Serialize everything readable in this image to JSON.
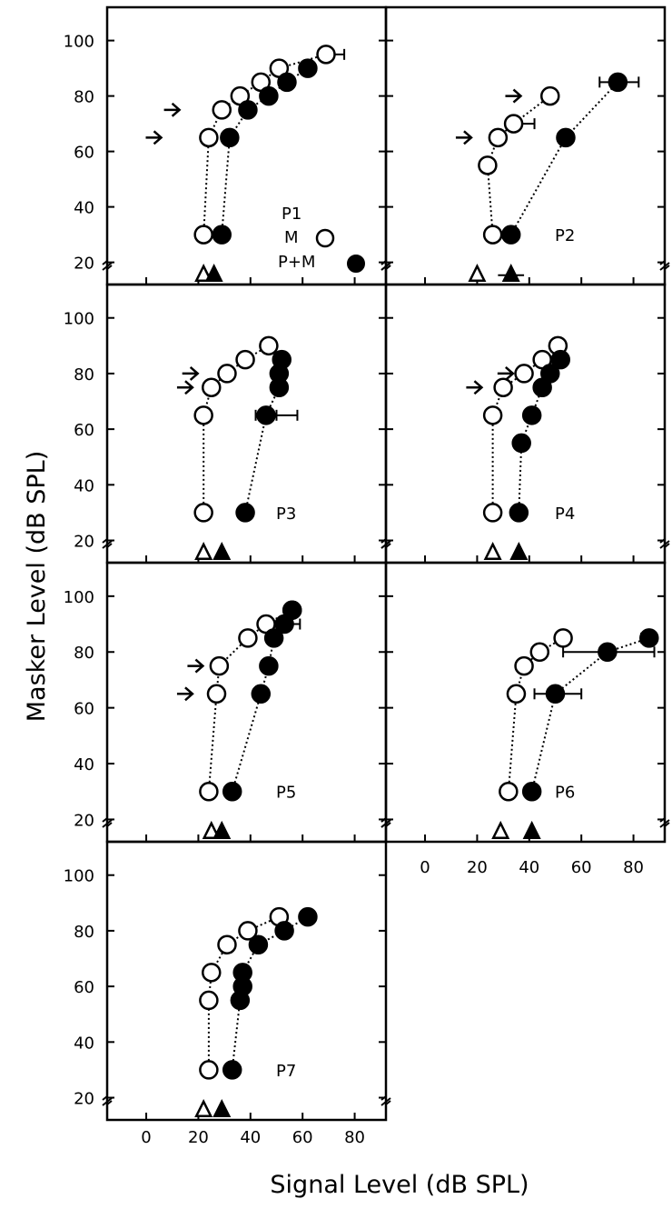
{
  "figure": {
    "xlabel": "Signal Level (dB SPL)",
    "ylabel": "Masker Level (dB SPL)",
    "legend": {
      "title": "P1",
      "m_label": "M",
      "pm_label": "P+M"
    }
  },
  "colors": {
    "ink": "#000000",
    "background": "#ffffff",
    "open_marker": "#ffffff",
    "filled_marker": "#000000"
  },
  "chart_data": [
    {
      "type": "scatter",
      "panel": "P1",
      "xlim": [
        -15,
        92
      ],
      "ylim": [
        12,
        112
      ],
      "yticks": [
        20,
        40,
        60,
        80,
        100
      ],
      "xticks": [],
      "grid": false,
      "series": [
        {
          "name": "M",
          "marker": "open-circle",
          "points": [
            [
              22,
              30
            ],
            [
              24,
              65
            ],
            [
              29,
              75
            ],
            [
              36,
              80
            ],
            [
              44,
              85
            ],
            [
              51,
              90
            ],
            [
              69,
              95
            ]
          ],
          "xerr": [
            [
              69,
              76
            ]
          ]
        },
        {
          "name": "P+M",
          "marker": "filled-circle",
          "points": [
            [
              29,
              30
            ],
            [
              32,
              65
            ],
            [
              39,
              75
            ],
            [
              47,
              80
            ],
            [
              54,
              85
            ],
            [
              62,
              90
            ]
          ]
        }
      ],
      "thresholds": [
        {
          "series": "M",
          "x": 22,
          "marker": "open-triangle"
        },
        {
          "series": "P+M",
          "x": 26,
          "marker": "filled-triangle"
        }
      ],
      "arrows": [
        {
          "x": 11,
          "y": 75
        },
        {
          "x": 4,
          "y": 65
        }
      ]
    },
    {
      "type": "scatter",
      "panel": "P2",
      "xlim": [
        -15,
        92
      ],
      "ylim": [
        12,
        112
      ],
      "yticks": [],
      "xticks": [],
      "grid": false,
      "series": [
        {
          "name": "M",
          "marker": "open-circle",
          "points": [
            [
              26,
              30
            ],
            [
              24,
              55
            ],
            [
              28,
              65
            ],
            [
              34,
              70
            ],
            [
              48,
              80
            ]
          ],
          "xerr": [
            [
              34,
              42
            ]
          ]
        },
        {
          "name": "P+M",
          "marker": "filled-circle",
          "points": [
            [
              33,
              30
            ],
            [
              54,
              65
            ],
            [
              74,
              85
            ]
          ],
          "xerr": [
            [
              67,
              82
            ]
          ]
        }
      ],
      "thresholds": [
        {
          "series": "M",
          "x": 20,
          "marker": "open-triangle",
          "xerr": []
        },
        {
          "series": "P+M",
          "x": 33,
          "marker": "filled-triangle",
          "xerr": [
            28,
            38
          ]
        }
      ],
      "arrows": [
        {
          "x": 35,
          "y": 80
        },
        {
          "x": 16,
          "y": 65
        }
      ]
    },
    {
      "type": "scatter",
      "panel": "P3",
      "xlim": [
        -15,
        92
      ],
      "ylim": [
        12,
        112
      ],
      "yticks": [
        20,
        40,
        60,
        80,
        100
      ],
      "xticks": [],
      "grid": false,
      "series": [
        {
          "name": "M",
          "marker": "open-circle",
          "points": [
            [
              22,
              30
            ],
            [
              22,
              65
            ],
            [
              25,
              75
            ],
            [
              31,
              80
            ],
            [
              38,
              85
            ],
            [
              47,
              90
            ]
          ]
        },
        {
          "name": "P+M",
          "marker": "filled-circle",
          "points": [
            [
              38,
              30
            ],
            [
              46,
              65
            ],
            [
              51,
              75
            ],
            [
              51,
              80
            ],
            [
              52,
              85
            ]
          ],
          "xerr": [
            [
              42,
              50
            ],
            [
              44,
              58
            ]
          ]
        }
      ],
      "thresholds": [
        {
          "series": "M",
          "x": 22,
          "marker": "open-triangle"
        },
        {
          "series": "P+M",
          "x": 29,
          "marker": "filled-triangle"
        }
      ],
      "arrows": [
        {
          "x": 16,
          "y": 75
        },
        {
          "x": 18,
          "y": 80
        }
      ]
    },
    {
      "type": "scatter",
      "panel": "P4",
      "xlim": [
        -15,
        92
      ],
      "ylim": [
        12,
        112
      ],
      "yticks": [],
      "xticks": [],
      "grid": false,
      "series": [
        {
          "name": "M",
          "marker": "open-circle",
          "points": [
            [
              26,
              30
            ],
            [
              26,
              65
            ],
            [
              30,
              75
            ],
            [
              38,
              80
            ],
            [
              45,
              85
            ],
            [
              51,
              90
            ]
          ]
        },
        {
          "name": "P+M",
          "marker": "filled-circle",
          "points": [
            [
              36,
              30
            ],
            [
              37,
              55
            ],
            [
              41,
              65
            ],
            [
              45,
              75
            ],
            [
              48,
              80
            ],
            [
              52,
              85
            ]
          ]
        }
      ],
      "thresholds": [
        {
          "series": "M",
          "x": 26,
          "marker": "open-triangle"
        },
        {
          "series": "P+M",
          "x": 36,
          "marker": "filled-triangle"
        }
      ],
      "arrows": [
        {
          "x": 20,
          "y": 75
        },
        {
          "x": 32,
          "y": 80
        }
      ]
    },
    {
      "type": "scatter",
      "panel": "P5",
      "xlim": [
        -15,
        92
      ],
      "ylim": [
        12,
        112
      ],
      "yticks": [
        20,
        40,
        60,
        80,
        100
      ],
      "xticks": [],
      "grid": false,
      "series": [
        {
          "name": "M",
          "marker": "open-circle",
          "points": [
            [
              24,
              30
            ],
            [
              27,
              65
            ],
            [
              28,
              75
            ],
            [
              39,
              85
            ],
            [
              46,
              90
            ],
            [
              56,
              95
            ]
          ]
        },
        {
          "name": "P+M",
          "marker": "filled-circle",
          "points": [
            [
              33,
              30
            ],
            [
              44,
              65
            ],
            [
              47,
              75
            ],
            [
              49,
              85
            ],
            [
              53,
              90
            ],
            [
              56,
              95
            ]
          ],
          "xerr": [
            [
              53,
              59
            ]
          ]
        }
      ],
      "thresholds": [
        {
          "series": "M",
          "x": 25,
          "marker": "open-triangle"
        },
        {
          "series": "P+M",
          "x": 29,
          "marker": "filled-triangle"
        }
      ],
      "arrows": [
        {
          "x": 20,
          "y": 75
        },
        {
          "x": 16,
          "y": 65
        }
      ]
    },
    {
      "type": "scatter",
      "panel": "P6",
      "xlim": [
        -15,
        92
      ],
      "ylim": [
        12,
        112
      ],
      "yticks": [],
      "xticks": [
        0,
        20,
        40,
        60,
        80
      ],
      "grid": false,
      "series": [
        {
          "name": "M",
          "marker": "open-circle",
          "points": [
            [
              32,
              30
            ],
            [
              35,
              65
            ],
            [
              38,
              75
            ],
            [
              44,
              80
            ],
            [
              53,
              85
            ]
          ]
        },
        {
          "name": "P+M",
          "marker": "filled-circle",
          "points": [
            [
              41,
              30
            ],
            [
              50,
              65
            ],
            [
              70,
              80
            ],
            [
              86,
              85
            ]
          ],
          "xerr": [
            [
              42,
              60
            ],
            [
              53,
              88
            ],
            [
              83,
              88
            ]
          ]
        }
      ],
      "thresholds": [
        {
          "series": "M",
          "x": 29,
          "marker": "open-triangle"
        },
        {
          "series": "P+M",
          "x": 41,
          "marker": "filled-triangle"
        }
      ]
    },
    {
      "type": "scatter",
      "panel": "P7",
      "xlim": [
        -15,
        92
      ],
      "ylim": [
        12,
        112
      ],
      "yticks": [
        20,
        40,
        60,
        80,
        100
      ],
      "xticks": [
        0,
        20,
        40,
        60,
        80
      ],
      "grid": false,
      "series": [
        {
          "name": "M",
          "marker": "open-circle",
          "points": [
            [
              24,
              30
            ],
            [
              24,
              55
            ],
            [
              25,
              65
            ],
            [
              31,
              75
            ],
            [
              39,
              80
            ],
            [
              51,
              85
            ]
          ]
        },
        {
          "name": "P+M",
          "marker": "filled-circle",
          "points": [
            [
              33,
              30
            ],
            [
              36,
              55
            ],
            [
              37,
              60
            ],
            [
              37,
              65
            ],
            [
              43,
              75
            ],
            [
              53,
              80
            ],
            [
              62,
              85
            ]
          ]
        }
      ],
      "thresholds": [
        {
          "series": "M",
          "x": 22,
          "marker": "open-triangle"
        },
        {
          "series": "P+M",
          "x": 29,
          "marker": "filled-triangle"
        }
      ]
    }
  ]
}
